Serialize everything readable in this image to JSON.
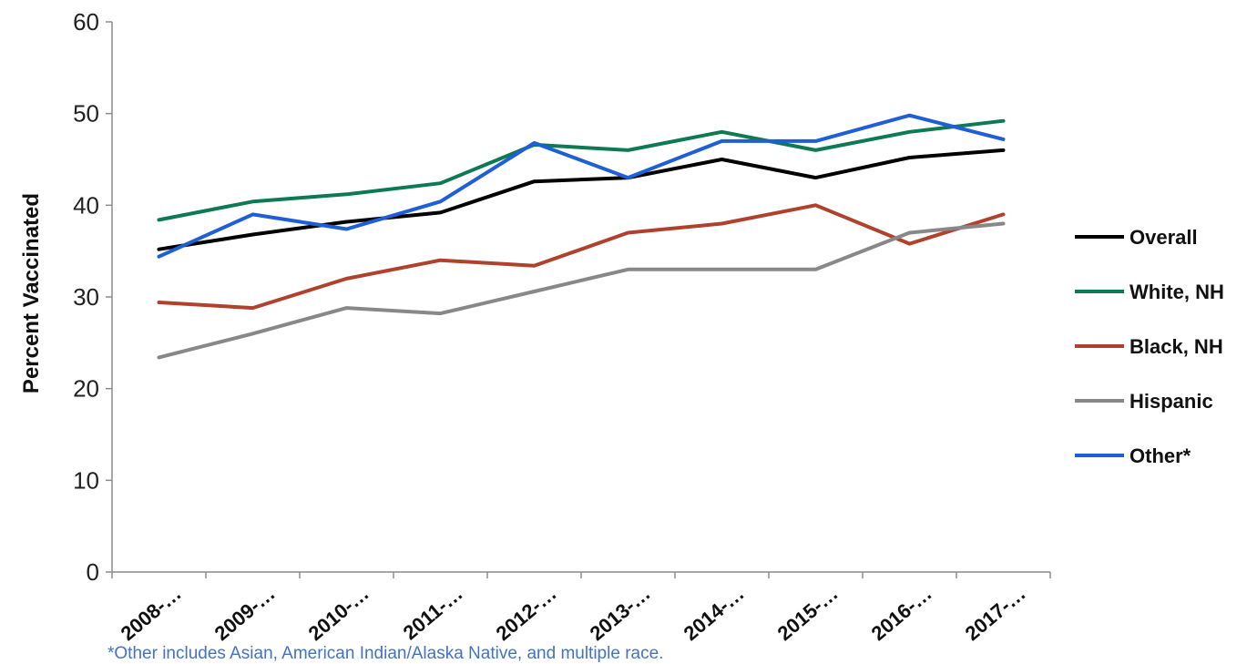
{
  "chart_data": {
    "type": "line",
    "categories": [
      "2008-…",
      "2009-…",
      "2010-…",
      "2011-…",
      "2012-…",
      "2013-…",
      "2014-…",
      "2015-…",
      "2016-…",
      "2017-…"
    ],
    "ylabel": "Percent Vaccinated",
    "ylim": [
      0,
      60
    ],
    "yticks": [
      0,
      10,
      20,
      30,
      40,
      50,
      60
    ],
    "grid": false,
    "legend_position": "right",
    "series": [
      {
        "name": "Overall",
        "color": "#000000",
        "values": [
          35.2,
          36.8,
          38.2,
          39.2,
          42.6,
          43.0,
          45.0,
          43.0,
          45.2,
          46.0
        ]
      },
      {
        "name": "White, NH",
        "color": "#0e7a53",
        "values": [
          38.4,
          40.4,
          41.2,
          42.4,
          46.6,
          46.0,
          48.0,
          46.0,
          48.0,
          49.2
        ]
      },
      {
        "name": "Black, NH",
        "color": "#b0422d",
        "values": [
          29.4,
          28.8,
          32.0,
          34.0,
          33.4,
          37.0,
          38.0,
          40.0,
          35.8,
          39.0
        ]
      },
      {
        "name": "Hispanic",
        "color": "#888888",
        "values": [
          23.4,
          26.0,
          28.8,
          28.2,
          30.6,
          33.0,
          33.0,
          33.0,
          37.0,
          38.0
        ]
      },
      {
        "name": "Other*",
        "color": "#1f5fd6",
        "values": [
          34.4,
          39.0,
          37.4,
          40.4,
          46.8,
          43.0,
          47.0,
          47.0,
          49.8,
          47.2
        ]
      }
    ],
    "footnote": "*Other includes Asian, American Indian/Alaska Native, and multiple race."
  }
}
